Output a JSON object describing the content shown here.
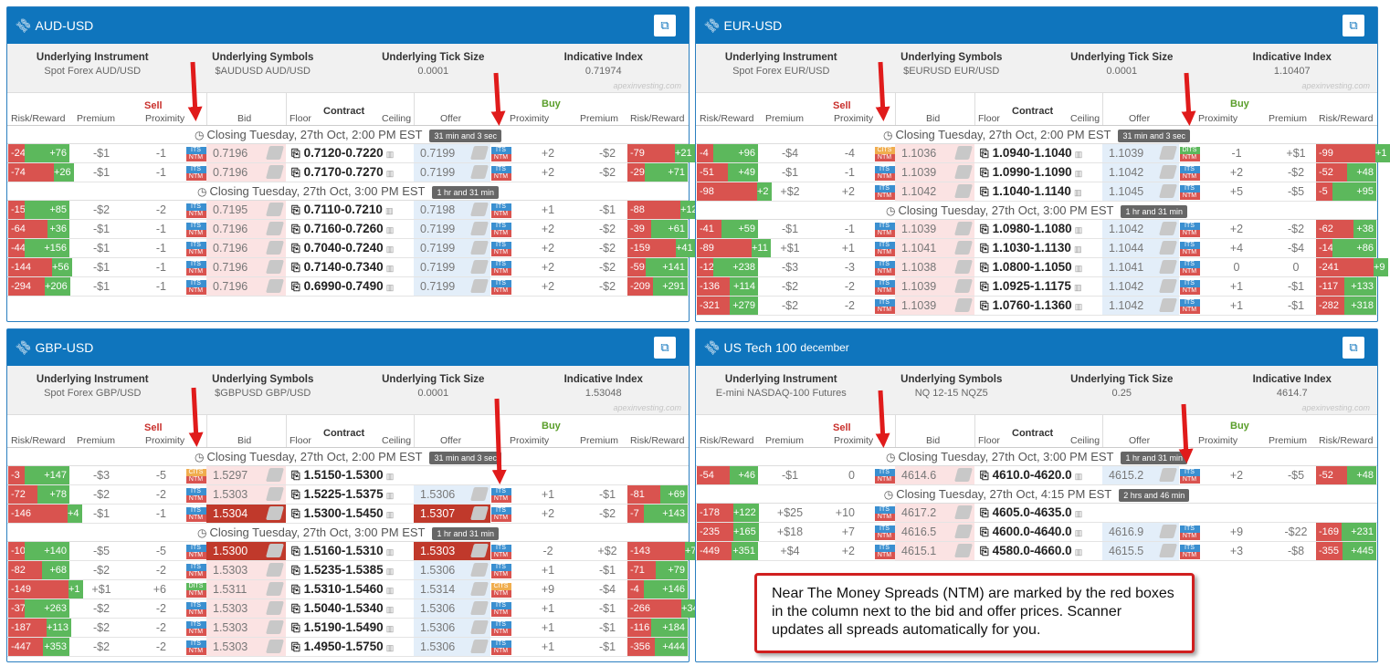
{
  "columns": {
    "risk_reward": "Risk/Reward",
    "premium": "Premium",
    "proximity": "Proximity",
    "bid": "Bid",
    "floor": "Floor",
    "contract": "Contract",
    "ceiling": "Ceiling",
    "offer": "Offer",
    "sell": "Sell",
    "buy": "Buy"
  },
  "info_labels": {
    "instrument": "Underlying Instrument",
    "symbols": "Underlying Symbols",
    "tick": "Underlying Tick Size",
    "index": "Indicative Index"
  },
  "watermark": "apexinvesting.com",
  "colors": {
    "header": "#0f75bd",
    "sell": "#c9302c",
    "buy": "#5a9e2a",
    "negative": "#d9534f",
    "positive": "#5cb85c",
    "its": "#3a8fd0",
    "ntm": "#d9534f"
  },
  "icons": {
    "title": "link-icon",
    "external": "external-link-icon",
    "clock": "clock-icon",
    "contract": "copy-icon",
    "chart": "bar-chart-icon",
    "tag": "tag-icon"
  },
  "note": "Near The Money Spreads (NTM) are marked by the red boxes in the column next to the bid and offer prices. Scanner updates all spreads automatically for you.",
  "panels": [
    {
      "title": "AUD-USD",
      "subtitle": "",
      "instrument": "Spot Forex AUD/USD",
      "symbols": "$AUDUSD AUD/USD",
      "tick": "0.0001",
      "index": "0.71974",
      "groups": [
        {
          "closing": "Closing Tuesday, 27th Oct, 2:00 PM EST",
          "badge": "31 min and 3 sec",
          "rows": [
            {
              "sn": "-24",
              "sp": "+76",
              "sf": 0.24,
              "spr": "-$1",
              "spx": "-1",
              "sb": "ITS",
              "bid": "0.7196",
              "con": "0.7120-0.7220",
              "off": "0.7199",
              "bb": "ITS",
              "bpx": "+2",
              "bpr": "-$2",
              "bn": "-79",
              "bp": "+21",
              "bf": 0.79
            },
            {
              "sn": "-74",
              "sp": "+26",
              "sf": 0.74,
              "spr": "-$1",
              "spx": "-1",
              "sb": "ITS",
              "bid": "0.7196",
              "con": "0.7170-0.7270",
              "off": "0.7199",
              "bb": "ITS",
              "bpx": "+2",
              "bpr": "-$2",
              "bn": "-29",
              "bp": "+71",
              "bf": 0.29
            }
          ]
        },
        {
          "closing": "Closing Tuesday, 27th Oct, 3:00 PM EST",
          "badge": "1 hr and 31 min",
          "rows": [
            {
              "sn": "-15",
              "sp": "+85",
              "sf": 0.15,
              "spr": "-$2",
              "spx": "-2",
              "sb": "ITS",
              "bid": "0.7195",
              "con": "0.7110-0.7210",
              "off": "0.7198",
              "bb": "ITS",
              "bpx": "+1",
              "bpr": "-$1",
              "bn": "-88",
              "bp": "+12",
              "bf": 0.88
            },
            {
              "sn": "-64",
              "sp": "+36",
              "sf": 0.64,
              "spr": "-$1",
              "spx": "-1",
              "sb": "ITS",
              "bid": "0.7196",
              "con": "0.7160-0.7260",
              "off": "0.7199",
              "bb": "ITS",
              "bpx": "+2",
              "bpr": "-$2",
              "bn": "-39",
              "bp": "+61",
              "bf": 0.39
            },
            {
              "sn": "-44",
              "sp": "+156",
              "sf": 0.22,
              "spr": "-$1",
              "spx": "-1",
              "sb": "ITS",
              "bid": "0.7196",
              "con": "0.7040-0.7240",
              "off": "0.7199",
              "bb": "ITS",
              "bpx": "+2",
              "bpr": "-$2",
              "bn": "-159",
              "bp": "+41",
              "bf": 0.8
            },
            {
              "sn": "-144",
              "sp": "+56",
              "sf": 0.72,
              "spr": "-$1",
              "spx": "-1",
              "sb": "ITS",
              "bid": "0.7196",
              "con": "0.7140-0.7340",
              "off": "0.7199",
              "bb": "ITS",
              "bpx": "+2",
              "bpr": "-$2",
              "bn": "-59",
              "bp": "+141",
              "bf": 0.3
            },
            {
              "sn": "-294",
              "sp": "+206",
              "sf": 0.59,
              "spr": "-$1",
              "spx": "-1",
              "sb": "ITS",
              "bid": "0.7196",
              "con": "0.6990-0.7490",
              "off": "0.7199",
              "bb": "ITS",
              "bpx": "+2",
              "bpr": "-$2",
              "bn": "-209",
              "bp": "+291",
              "bf": 0.42
            }
          ]
        }
      ]
    },
    {
      "title": "EUR-USD",
      "subtitle": "",
      "instrument": "Spot Forex EUR/USD",
      "symbols": "$EURUSD EUR/USD",
      "tick": "0.0001",
      "index": "1.10407",
      "groups": [
        {
          "closing": "Closing Tuesday, 27th Oct, 2:00 PM EST",
          "badge": "31 min and 3 sec",
          "rows": [
            {
              "sn": "-4",
              "sp": "+96",
              "sf": 0.04,
              "spr": "-$4",
              "spx": "-4",
              "sb": "CITS",
              "bid": "1.1036",
              "con": "1.0940-1.1040",
              "off": "1.1039",
              "bb": "DITS",
              "bpx": "-1",
              "bpr": "+$1",
              "bn": "-99",
              "bp": "+1",
              "bf": 0.99
            },
            {
              "sn": "-51",
              "sp": "+49",
              "sf": 0.51,
              "spr": "-$1",
              "spx": "-1",
              "sb": "ITS",
              "bid": "1.1039",
              "con": "1.0990-1.1090",
              "off": "1.1042",
              "bb": "ITS",
              "bpx": "+2",
              "bpr": "-$2",
              "bn": "-52",
              "bp": "+48",
              "bf": 0.52
            },
            {
              "sn": "-98",
              "sp": "+2",
              "sf": 0.98,
              "spr": "+$2",
              "spx": "+2",
              "sb": "ITS",
              "bid": "1.1042",
              "con": "1.1040-1.1140",
              "off": "1.1045",
              "bb": "ITS",
              "bpx": "+5",
              "bpr": "-$5",
              "bn": "-5",
              "bp": "+95",
              "bf": 0.05
            }
          ]
        },
        {
          "closing": "Closing Tuesday, 27th Oct, 3:00 PM EST",
          "badge": "1 hr and 31 min",
          "rows": [
            {
              "sn": "-41",
              "sp": "+59",
              "sf": 0.41,
              "spr": "-$1",
              "spx": "-1",
              "sb": "ITS",
              "bid": "1.1039",
              "con": "1.0980-1.1080",
              "off": "1.1042",
              "bb": "ITS",
              "bpx": "+2",
              "bpr": "-$2",
              "bn": "-62",
              "bp": "+38",
              "bf": 0.62
            },
            {
              "sn": "-89",
              "sp": "+11",
              "sf": 0.89,
              "spr": "+$1",
              "spx": "+1",
              "sb": "ITS",
              "bid": "1.1041",
              "con": "1.1030-1.1130",
              "off": "1.1044",
              "bb": "ITS",
              "bpx": "+4",
              "bpr": "-$4",
              "bn": "-14",
              "bp": "+86",
              "bf": 0.14
            },
            {
              "sn": "-12",
              "sp": "+238",
              "sf": 0.05,
              "spr": "-$3",
              "spx": "-3",
              "sb": "ITS",
              "bid": "1.1038",
              "con": "1.0800-1.1050",
              "off": "1.1041",
              "bb": "ITS",
              "bpx": "0",
              "bpr": "0",
              "bn": "-241",
              "bp": "+9",
              "bf": 0.96
            },
            {
              "sn": "-136",
              "sp": "+114",
              "sf": 0.54,
              "spr": "-$2",
              "spx": "-2",
              "sb": "ITS",
              "bid": "1.1039",
              "con": "1.0925-1.1175",
              "off": "1.1042",
              "bb": "ITS",
              "bpx": "+1",
              "bpr": "-$1",
              "bn": "-117",
              "bp": "+133",
              "bf": 0.47
            },
            {
              "sn": "-321",
              "sp": "+279",
              "sf": 0.54,
              "spr": "-$2",
              "spx": "-2",
              "sb": "ITS",
              "bid": "1.1039",
              "con": "1.0760-1.1360",
              "off": "1.1042",
              "bb": "ITS",
              "bpx": "+1",
              "bpr": "-$1",
              "bn": "-282",
              "bp": "+318",
              "bf": 0.47
            }
          ]
        }
      ]
    },
    {
      "title": "GBP-USD",
      "subtitle": "",
      "instrument": "Spot Forex GBP/USD",
      "symbols": "$GBPUSD GBP/USD",
      "tick": "0.0001",
      "index": "1.53048",
      "groups": [
        {
          "closing": "Closing Tuesday, 27th Oct, 2:00 PM EST",
          "badge": "31 min and 3 sec",
          "rows": [
            {
              "sn": "-3",
              "sp": "+147",
              "sf": 0.02,
              "spr": "-$3",
              "spx": "-5",
              "sb": "CITS",
              "bid": "1.5297",
              "con": "1.5150-1.5300",
              "off": "",
              "bb": "",
              "bpx": "",
              "bpr": "",
              "bn": "",
              "bp": "",
              "bf": 0
            },
            {
              "sn": "-72",
              "sp": "+78",
              "sf": 0.48,
              "spr": "-$2",
              "spx": "-2",
              "sb": "ITS",
              "bid": "1.5303",
              "con": "1.5225-1.5375",
              "off": "1.5306",
              "bb": "ITS",
              "bpx": "+1",
              "bpr": "-$1",
              "bn": "-81",
              "bp": "+69",
              "bf": 0.54
            },
            {
              "sn": "-146",
              "sp": "+4",
              "sf": 0.97,
              "spr": "-$1",
              "spx": "-1",
              "sb": "ITS",
              "bid": "1.5304",
              "bidhot": true,
              "con": "1.5300-1.5450",
              "off": "1.5307",
              "offhot": true,
              "bb": "ITS",
              "bpx": "+2",
              "bpr": "-$2",
              "bn": "-7",
              "bp": "+143",
              "bf": 0.05
            }
          ]
        },
        {
          "closing": "Closing Tuesday, 27th Oct, 3:00 PM EST",
          "badge": "1 hr and 31 min",
          "rows": [
            {
              "sn": "-10",
              "sp": "+140",
              "sf": 0.07,
              "spr": "-$5",
              "spx": "-5",
              "sb": "ITS",
              "bid": "1.5300",
              "bidhot": true,
              "con": "1.5160-1.5310",
              "off": "1.5303",
              "offhot": true,
              "bb": "ITS",
              "bpx": "-2",
              "bpr": "+$2",
              "bn": "-143",
              "bp": "+7",
              "bf": 0.95
            },
            {
              "sn": "-82",
              "sp": "+68",
              "sf": 0.55,
              "spr": "-$2",
              "spx": "-2",
              "sb": "ITS",
              "bid": "1.5303",
              "con": "1.5235-1.5385",
              "off": "1.5306",
              "bb": "ITS",
              "bpx": "+1",
              "bpr": "-$1",
              "bn": "-71",
              "bp": "+79",
              "bf": 0.47
            },
            {
              "sn": "-149",
              "sp": "+1",
              "sf": 0.99,
              "spr": "+$1",
              "spx": "+6",
              "sb": "DITS",
              "bid": "1.5311",
              "con": "1.5310-1.5460",
              "off": "1.5314",
              "bb": "CITS",
              "bpx": "+9",
              "bpr": "-$4",
              "bn": "-4",
              "bp": "+146",
              "bf": 0.03
            },
            {
              "sn": "-37",
              "sp": "+263",
              "sf": 0.12,
              "spr": "-$2",
              "spx": "-2",
              "sb": "ITS",
              "bid": "1.5303",
              "con": "1.5040-1.5340",
              "off": "1.5306",
              "bb": "ITS",
              "bpx": "+1",
              "bpr": "-$1",
              "bn": "-266",
              "bp": "+34",
              "bf": 0.89
            },
            {
              "sn": "-187",
              "sp": "+113",
              "sf": 0.62,
              "spr": "-$2",
              "spx": "-2",
              "sb": "ITS",
              "bid": "1.5303",
              "con": "1.5190-1.5490",
              "off": "1.5306",
              "bb": "ITS",
              "bpx": "+1",
              "bpr": "-$1",
              "bn": "-116",
              "bp": "+184",
              "bf": 0.39
            },
            {
              "sn": "-447",
              "sp": "+353",
              "sf": 0.56,
              "spr": "-$2",
              "spx": "-2",
              "sb": "ITS",
              "bid": "1.5303",
              "con": "1.4950-1.5750",
              "off": "1.5306",
              "bb": "ITS",
              "bpx": "+1",
              "bpr": "-$1",
              "bn": "-356",
              "bp": "+444",
              "bf": 0.45
            }
          ]
        }
      ]
    },
    {
      "title": "US Tech 100",
      "subtitle": "december",
      "instrument": "E-mini NASDAQ-100 Futures",
      "symbols": "NQ 12-15 NQZ5",
      "tick": "0.25",
      "index": "4614.7",
      "groups": [
        {
          "closing": "Closing Tuesday, 27th Oct, 3:00 PM EST",
          "badge": "1 hr and 31 min",
          "rows": [
            {
              "sn": "-54",
              "sp": "+46",
              "sf": 0.54,
              "spr": "-$1",
              "spx": "0",
              "sb": "ITS",
              "bid": "4614.6",
              "con": "4610.0-4620.0",
              "off": "4615.2",
              "bb": "ITS",
              "bpx": "+2",
              "bpr": "-$5",
              "bn": "-52",
              "bp": "+48",
              "bf": 0.52
            }
          ]
        },
        {
          "closing": "Closing Tuesday, 27th Oct, 4:15 PM EST",
          "badge": "2 hrs and 46 min",
          "rows": [
            {
              "sn": "-178",
              "sp": "+122",
              "sf": 0.59,
              "spr": "+$25",
              "spx": "+10",
              "sb": "ITS",
              "bid": "4617.2",
              "con": "4605.0-4635.0",
              "off": "",
              "bb": "",
              "bpx": "",
              "bpr": "",
              "bn": "",
              "bp": "",
              "bf": 0
            },
            {
              "sn": "-235",
              "sp": "+165",
              "sf": 0.59,
              "spr": "+$18",
              "spx": "+7",
              "sb": "ITS",
              "bid": "4616.5",
              "con": "4600.0-4640.0",
              "off": "4616.9",
              "bb": "ITS",
              "bpx": "+9",
              "bpr": "-$22",
              "bn": "-169",
              "bp": "+231",
              "bf": 0.42
            },
            {
              "sn": "-449",
              "sp": "+351",
              "sf": 0.56,
              "spr": "+$4",
              "spx": "+2",
              "sb": "ITS",
              "bid": "4615.1",
              "con": "4580.0-4660.0",
              "off": "4615.5",
              "bb": "ITS",
              "bpx": "+3",
              "bpr": "-$8",
              "bn": "-355",
              "bp": "+445",
              "bf": 0.44
            }
          ]
        }
      ]
    }
  ]
}
